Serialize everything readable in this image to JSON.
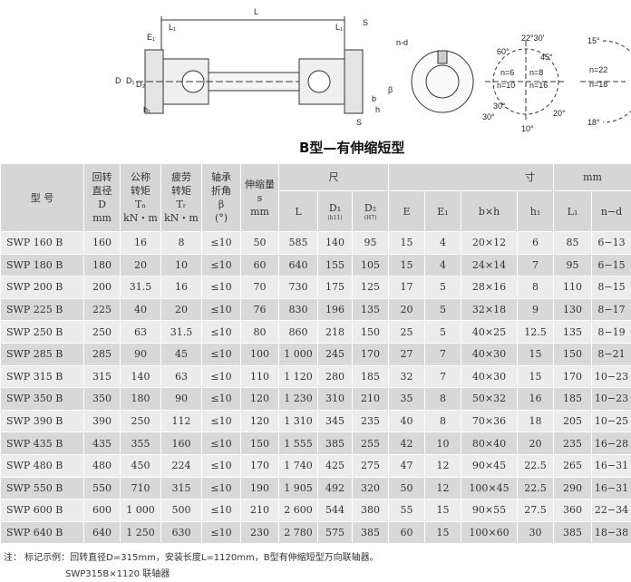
{
  "diagram": {
    "labels": {
      "L": "L",
      "L1": "L₁",
      "L1b": "L₁",
      "E1": "E₁",
      "D": "D",
      "D1": "D₁",
      "D2": "D₂",
      "h1": "h₁",
      "S": "S",
      "S2": "S",
      "b": "b",
      "h": "h",
      "beta": "β",
      "nd": "n-d",
      "a1": "22°30'",
      "a2": "45°",
      "a3": "60°",
      "a4": "30°",
      "a5": "20°",
      "a6": "10°",
      "a7": "30°",
      "a8": "15°",
      "a9": "18°",
      "n6": "n=6",
      "n8": "n=8",
      "n10": "n=10",
      "n16": "n=16",
      "n22": "n=22",
      "n18": "n=18"
    }
  },
  "title": "B型—有伸缩短型",
  "table": {
    "headers": {
      "type": "型  号",
      "D": [
        "回转",
        "直径",
        "D",
        "mm"
      ],
      "Ta": [
        "公称",
        "转矩",
        "Tₙ",
        "kN・m"
      ],
      "Tr": [
        "疲劳",
        "转矩",
        "Tᵣ",
        "kN・m"
      ],
      "beta": [
        "轴承",
        "折角",
        "β",
        "(°)"
      ],
      "s": [
        "伸缩量",
        "s",
        "mm"
      ],
      "dim_left": "尺",
      "dim_mid": "寸",
      "dim_unit": "mm",
      "L": "L",
      "D1": "D₁",
      "D1_sub": "(h11)",
      "D2": "D₂",
      "D2_sub": "(H7)",
      "E": "E",
      "E1": "E₁",
      "bxh": "b×h",
      "h1": "h₁",
      "L1": "L₁",
      "nd": "n−d"
    },
    "rows": [
      [
        "SWP 160 B",
        "160",
        "16",
        "8",
        "≤10",
        "50",
        "585",
        "140",
        "95",
        "15",
        "4",
        "20×12",
        "6",
        "85",
        "6−13"
      ],
      [
        "SWP 180 B",
        "180",
        "20",
        "10",
        "≤10",
        "60",
        "640",
        "155",
        "105",
        "15",
        "4",
        "24×14",
        "7",
        "95",
        "6−15"
      ],
      [
        "SWP 200 B",
        "200",
        "31.5",
        "16",
        "≤10",
        "70",
        "730",
        "175",
        "125",
        "17",
        "5",
        "28×16",
        "8",
        "110",
        "8−15"
      ],
      [
        "SWP 225 B",
        "225",
        "40",
        "20",
        "≤10",
        "76",
        "830",
        "196",
        "135",
        "20",
        "5",
        "32×18",
        "9",
        "130",
        "8−17"
      ],
      [
        "SWP 250 B",
        "250",
        "63",
        "31.5",
        "≤10",
        "80",
        "860",
        "218",
        "150",
        "25",
        "5",
        "40×25",
        "12.5",
        "135",
        "8−19"
      ],
      [
        "SWP 285 B",
        "285",
        "90",
        "45",
        "≤10",
        "100",
        "1 000",
        "245",
        "170",
        "27",
        "7",
        "40×30",
        "15",
        "150",
        "8−21"
      ],
      [
        "SWP 315 B",
        "315",
        "140",
        "63",
        "≤10",
        "110",
        "1 120",
        "280",
        "185",
        "32",
        "7",
        "40×30",
        "15",
        "170",
        "10−23"
      ],
      [
        "SWP 350 B",
        "350",
        "180",
        "90",
        "≤10",
        "120",
        "1 230",
        "310",
        "210",
        "35",
        "8",
        "50×32",
        "16",
        "185",
        "10−23"
      ],
      [
        "SWP 390 B",
        "390",
        "250",
        "112",
        "≤10",
        "120",
        "1 310",
        "345",
        "235",
        "40",
        "8",
        "70×36",
        "18",
        "205",
        "10−25"
      ],
      [
        "SWP 435 B",
        "435",
        "355",
        "160",
        "≤10",
        "150",
        "1 555",
        "385",
        "255",
        "42",
        "10",
        "80×40",
        "20",
        "235",
        "16−28"
      ],
      [
        "SWP 480 B",
        "480",
        "450",
        "224",
        "≤10",
        "170",
        "1 740",
        "425",
        "275",
        "47",
        "12",
        "90×45",
        "22.5",
        "265",
        "16−31"
      ],
      [
        "SWP 550 B",
        "550",
        "710",
        "315",
        "≤10",
        "190",
        "1 905",
        "492",
        "320",
        "50",
        "12",
        "100×45",
        "22.5",
        "290",
        "16−31"
      ],
      [
        "SWP 600 B",
        "600",
        "1 000",
        "500",
        "≤10",
        "210",
        "2 600",
        "544",
        "380",
        "55",
        "15",
        "90×55",
        "27.5",
        "360",
        "22−34"
      ],
      [
        "SWP 640 B",
        "640",
        "1 250",
        "630",
        "≤10",
        "230",
        "2 780",
        "575",
        "385",
        "60",
        "15",
        "100×60",
        "30",
        "385",
        "18−38"
      ]
    ]
  },
  "note": {
    "line1": "注：  标记示例：回转直径D=315mm，安装长度L=1120mm，B型有伸缩短型万向联轴器。",
    "line2": "SWP315B×1120  联轴器"
  }
}
